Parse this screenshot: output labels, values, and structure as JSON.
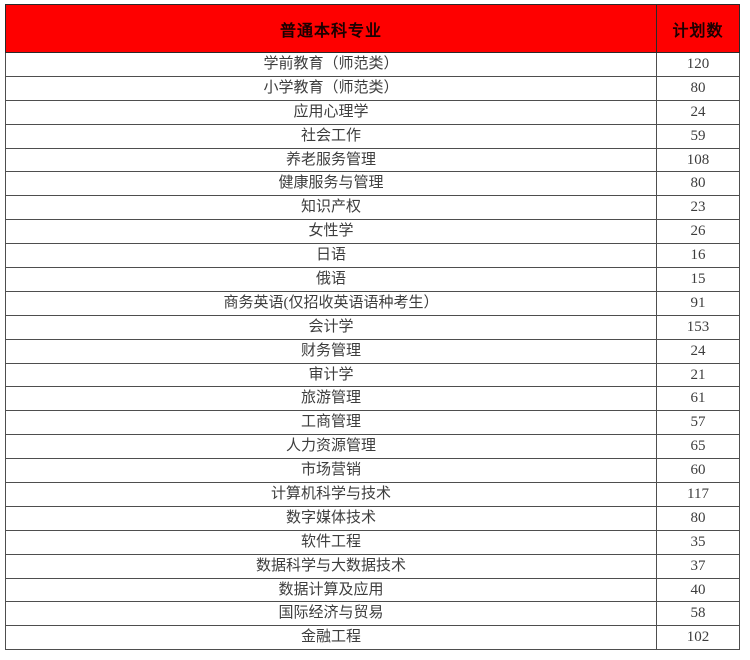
{
  "table": {
    "header": {
      "major_label": "普通本科专业",
      "count_label": "计划数"
    },
    "rows": [
      {
        "major": "学前教育（师范类）",
        "count": 120
      },
      {
        "major": "小学教育（师范类）",
        "count": 80
      },
      {
        "major": "应用心理学",
        "count": 24
      },
      {
        "major": "社会工作",
        "count": 59
      },
      {
        "major": "养老服务管理",
        "count": 108
      },
      {
        "major": "健康服务与管理",
        "count": 80
      },
      {
        "major": "知识产权",
        "count": 23
      },
      {
        "major": "女性学",
        "count": 26
      },
      {
        "major": "日语",
        "count": 16
      },
      {
        "major": "俄语",
        "count": 15
      },
      {
        "major": "商务英语(仅招收英语语种考生）",
        "count": 91
      },
      {
        "major": "会计学",
        "count": 153
      },
      {
        "major": "财务管理",
        "count": 24
      },
      {
        "major": "审计学",
        "count": 21
      },
      {
        "major": "旅游管理",
        "count": 61
      },
      {
        "major": "工商管理",
        "count": 57
      },
      {
        "major": "人力资源管理",
        "count": 65
      },
      {
        "major": "市场营销",
        "count": 60
      },
      {
        "major": "计算机科学与技术",
        "count": 117
      },
      {
        "major": "数字媒体技术",
        "count": 80
      },
      {
        "major": "软件工程",
        "count": 35
      },
      {
        "major": "数据科学与大数据技术",
        "count": 37
      },
      {
        "major": "数据计算及应用",
        "count": 40
      },
      {
        "major": "国际经济与贸易",
        "count": 58
      },
      {
        "major": "金融工程",
        "count": 102
      }
    ],
    "colors": {
      "header_bg": "#fe0000",
      "header_text": "#1c0000",
      "body_text": "#3d3d3d",
      "border": "#4e4e4e"
    }
  }
}
